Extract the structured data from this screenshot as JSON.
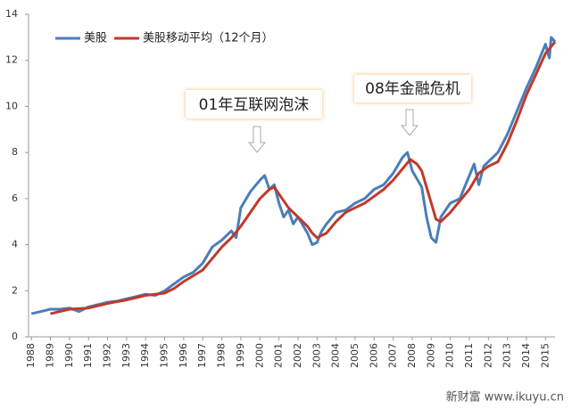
{
  "chart_data": {
    "type": "line",
    "series": [
      {
        "name": "美股",
        "color": "#4a7ebb",
        "x": [
          1988,
          1988.5,
          1989,
          1989.5,
          1990,
          1990.5,
          1990.75,
          1991,
          1991.5,
          1992,
          1992.5,
          1993,
          1993.5,
          1994,
          1994.5,
          1995,
          1995.5,
          1996,
          1996.5,
          1997,
          1997.5,
          1998,
          1998.5,
          1998.75,
          1999,
          1999.5,
          2000,
          2000.25,
          2000.5,
          2000.75,
          2001,
          2001.25,
          2001.5,
          2001.75,
          2002,
          2002.5,
          2002.75,
          2003,
          2003.25,
          2003.5,
          2004,
          2004.5,
          2005,
          2005.5,
          2006,
          2006.5,
          2007,
          2007.5,
          2007.75,
          2008,
          2008.5,
          2008.75,
          2009,
          2009.25,
          2009.5,
          2010,
          2010.5,
          2011,
          2011.25,
          2011.5,
          2011.75,
          2012,
          2012.5,
          2013,
          2013.5,
          2014,
          2014.5,
          2015,
          2015.2,
          2015.3,
          2015.5
        ],
        "values": [
          1.0,
          1.1,
          1.2,
          1.2,
          1.25,
          1.1,
          1.2,
          1.3,
          1.4,
          1.5,
          1.55,
          1.65,
          1.75,
          1.85,
          1.8,
          2.0,
          2.3,
          2.6,
          2.8,
          3.2,
          3.9,
          4.2,
          4.6,
          4.3,
          5.6,
          6.3,
          6.8,
          7.0,
          6.4,
          6.6,
          5.8,
          5.2,
          5.5,
          4.9,
          5.2,
          4.5,
          4.0,
          4.1,
          4.6,
          4.9,
          5.4,
          5.5,
          5.8,
          6.0,
          6.4,
          6.6,
          7.1,
          7.8,
          8.0,
          7.2,
          6.5,
          5.2,
          4.3,
          4.1,
          5.2,
          5.8,
          6.0,
          7.0,
          7.5,
          6.6,
          7.4,
          7.6,
          8.0,
          8.8,
          9.8,
          10.8,
          11.7,
          12.7,
          12.1,
          13.0,
          12.8
        ]
      },
      {
        "name": "美股移动平均（12个月）",
        "color": "#c0392b",
        "x": [
          1989,
          1989.5,
          1990,
          1991,
          1992,
          1993,
          1994,
          1994.5,
          1995,
          1995.5,
          1996,
          1996.5,
          1997,
          1997.5,
          1998,
          1998.5,
          1999,
          1999.5,
          2000,
          2000.5,
          2000.75,
          2001,
          2001.5,
          2002,
          2002.5,
          2002.75,
          2003,
          2003.5,
          2004,
          2004.5,
          2005,
          2005.5,
          2006,
          2006.5,
          2007,
          2007.5,
          2007.9,
          2008.25,
          2008.5,
          2008.75,
          2009,
          2009.25,
          2009.5,
          2010,
          2010.5,
          2011,
          2011.5,
          2012,
          2012.5,
          2013,
          2013.5,
          2014,
          2014.5,
          2015,
          2015.5
        ],
        "values": [
          1.0,
          1.1,
          1.2,
          1.25,
          1.45,
          1.6,
          1.8,
          1.85,
          1.9,
          2.1,
          2.4,
          2.65,
          2.9,
          3.4,
          3.9,
          4.3,
          4.8,
          5.4,
          6.0,
          6.4,
          6.5,
          6.2,
          5.6,
          5.2,
          4.8,
          4.5,
          4.3,
          4.5,
          5.0,
          5.4,
          5.6,
          5.8,
          6.1,
          6.4,
          6.8,
          7.3,
          7.7,
          7.5,
          7.2,
          6.5,
          5.8,
          5.1,
          5.0,
          5.4,
          5.9,
          6.4,
          7.1,
          7.4,
          7.6,
          8.4,
          9.4,
          10.5,
          11.4,
          12.3,
          12.8
        ]
      }
    ],
    "xlim": [
      1987.85,
      2015.5
    ],
    "xticks": [
      1988,
      1989,
      1990,
      1991,
      1992,
      1993,
      1994,
      1995,
      1996,
      1997,
      1998,
      1999,
      2000,
      2001,
      2002,
      2003,
      2004,
      2005,
      2006,
      2007,
      2008,
      2009,
      2010,
      2011,
      2012,
      2013,
      2014,
      2015
    ],
    "ylim": [
      0,
      14
    ],
    "yticks": [
      0,
      2,
      4,
      6,
      8,
      10,
      12,
      14
    ],
    "legend": "top-left",
    "annotations": [
      "01年互联网泡沫",
      "08年金融危机"
    ],
    "watermark": "新财富 www.ikuyu.cn"
  }
}
